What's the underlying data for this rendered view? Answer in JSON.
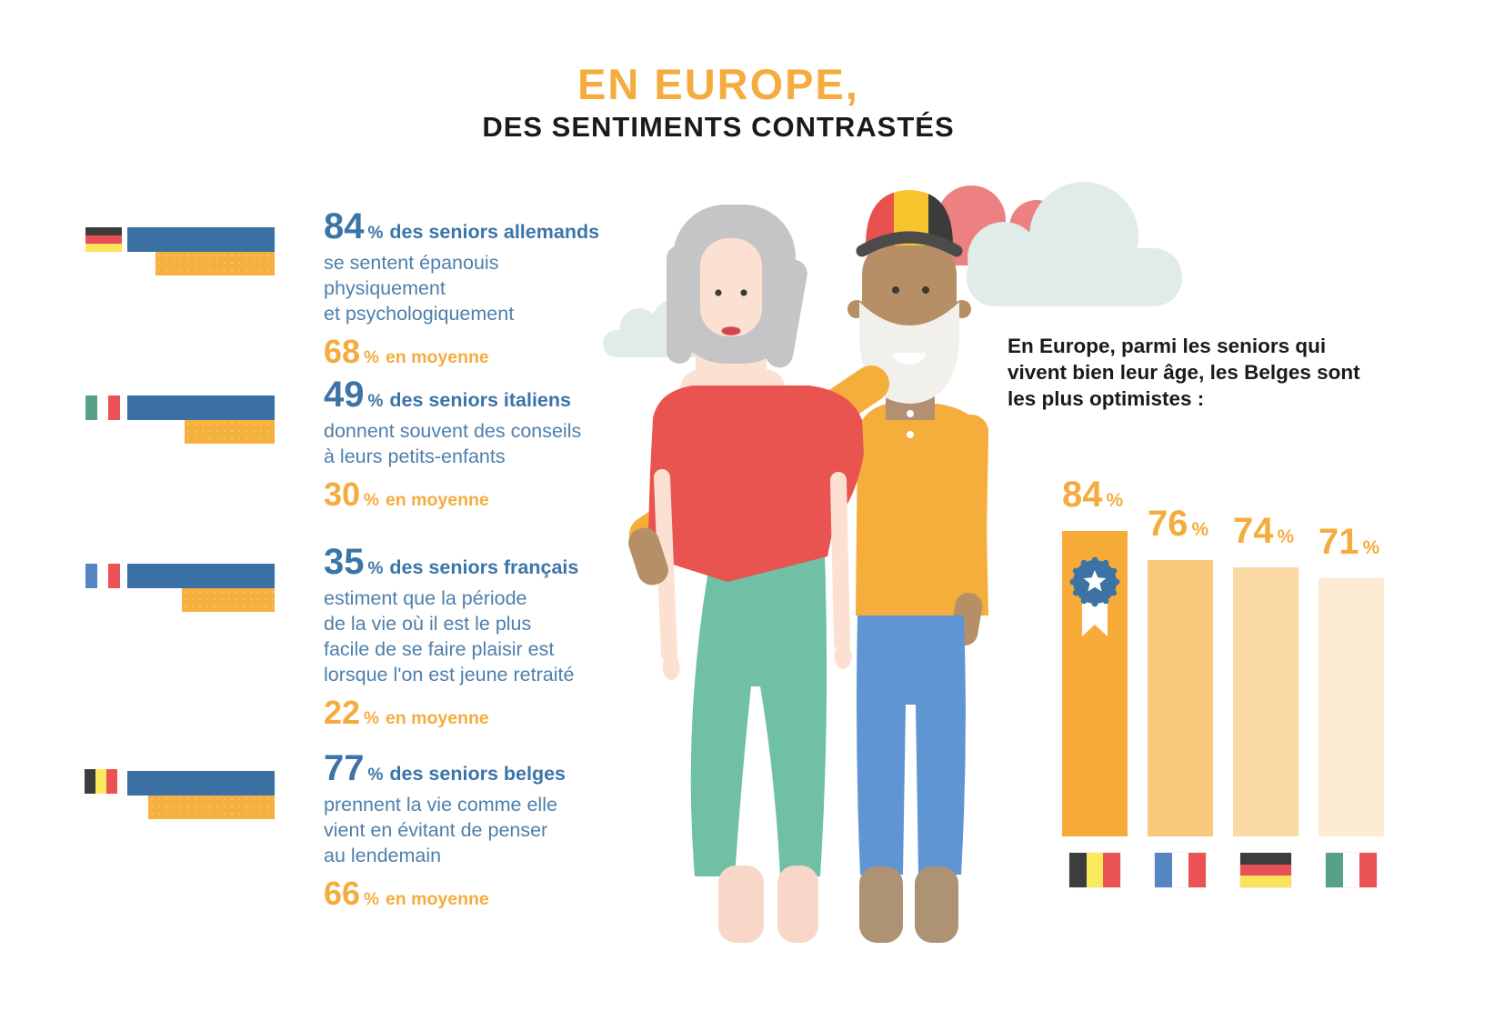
{
  "title": {
    "line1": "EN EUROPE,",
    "line2": "DES SENTIMENTS CONTRASTÉS"
  },
  "colors": {
    "accent_orange": "#F5AC3F",
    "headline_blue": "#3D74A8",
    "body_blue": "#4D7FAC",
    "bar_blue": "#3A70A3",
    "bar_orange": "#F5B13D",
    "text_black": "#1A1A18"
  },
  "flags": {
    "germany_small": {
      "orientation": "horizontal",
      "colors": [
        "#3D3D3D",
        "#E94F56",
        "#FBE35B"
      ]
    },
    "italy_small": {
      "orientation": "vertical",
      "colors": [
        "#57A287",
        "#FFFFFF",
        "#EA5254"
      ]
    },
    "france_small": {
      "orientation": "vertical",
      "colors": [
        "#5585C2",
        "#FFFFFF",
        "#EA5254"
      ]
    },
    "belgium_small": {
      "orientation": "vertical",
      "colors": [
        "#3D3D3D",
        "#FBE95E",
        "#EA5254"
      ]
    },
    "belgium": {
      "orientation": "vertical",
      "colors": [
        "#3D3D3D",
        "#FBE95E",
        "#EA5254"
      ]
    },
    "france": {
      "orientation": "vertical",
      "colors": [
        "#5585C2",
        "#FFFFFF",
        "#EA5254"
      ]
    },
    "germany": {
      "orientation": "horizontal",
      "colors": [
        "#3D3D3D",
        "#E94F56",
        "#FBE35B"
      ]
    },
    "italy": {
      "orientation": "vertical",
      "colors": [
        "#57A287",
        "#FFFFFF",
        "#EA5254"
      ]
    }
  },
  "stats": [
    {
      "flag": "germany_small",
      "value": "84",
      "pct": "%",
      "headline": "des seniors allemands",
      "description": [
        "se sentent épanouis physiquement",
        "et psychologiquement"
      ],
      "average": "68",
      "average_label": "en moyenne"
    },
    {
      "flag": "italy_small",
      "value": "49",
      "pct": "%",
      "headline": "des seniors italiens",
      "description": [
        "donnent souvent des conseils",
        "à leurs petits-enfants"
      ],
      "average": "30",
      "average_label": "en moyenne"
    },
    {
      "flag": "france_small",
      "value": "35",
      "pct": "%",
      "headline": "des seniors français",
      "description": [
        "estiment que la période",
        "de la vie où il est le plus",
        "facile de se faire plaisir est",
        "lorsque l'on est jeune retraité"
      ],
      "average": "22",
      "average_label": "en moyenne"
    },
    {
      "flag": "belgium_small",
      "value": "77",
      "pct": "%",
      "headline": "des seniors belges",
      "description": [
        "prennent la vie comme elle",
        "vient en évitant de penser",
        "au lendemain"
      ],
      "average": "66",
      "average_label": "en moyenne"
    }
  ],
  "right_panel": {
    "intro": [
      "En Europe, parmi les seniors qui",
      "vivent bien leur âge, les Belges sont",
      "les plus optimistes :"
    ],
    "bars": [
      {
        "value": "84",
        "pct": "%",
        "flag": "belgium",
        "highlight": true
      },
      {
        "value": "76",
        "pct": "%",
        "flag": "france",
        "highlight": false
      },
      {
        "value": "74",
        "pct": "%",
        "flag": "germany",
        "highlight": false
      },
      {
        "value": "71",
        "pct": "%",
        "flag": "italy",
        "highlight": false
      }
    ],
    "bar_colors": [
      "#F7AB38",
      "#F9C97C",
      "#FBD9A5",
      "#FDECD3"
    ]
  },
  "chart_data": [
    {
      "type": "bar",
      "orientation": "horizontal",
      "title": "Sentiments des seniors par pays vs moyenne européenne",
      "categories": [
        "Allemagne",
        "Italie",
        "France",
        "Belgique"
      ],
      "series": [
        {
          "name": "pays",
          "values": [
            84,
            49,
            35,
            77
          ],
          "color": "#3A70A3"
        },
        {
          "name": "moyenne européenne",
          "values": [
            68,
            30,
            22,
            66
          ],
          "color": "#F5B13D"
        }
      ],
      "unit": "%",
      "annotations": [
        "84 % des seniors allemands se sentent épanouis physiquement et psychologiquement (68 % en moyenne)",
        "49 % des seniors italiens donnent souvent des conseils à leurs petits-enfants (30 % en moyenne)",
        "35 % des seniors français estiment que la période de la vie où il est le plus facile de se faire plaisir est lorsque l'on est jeune retraité (22 % en moyenne)",
        "77 % des seniors belges prennent la vie comme elle vient en évitant de penser au lendemain (66 % en moyenne)"
      ]
    },
    {
      "type": "bar",
      "orientation": "vertical",
      "title": "En Europe, parmi les seniors qui vivent bien leur âge, les Belges sont les plus optimistes :",
      "categories": [
        "Belgique",
        "France",
        "Allemagne",
        "Italie"
      ],
      "values": [
        84,
        76,
        74,
        71
      ],
      "unit": "%",
      "ylim": [
        0,
        100
      ],
      "grid": false,
      "data_labels": [
        "84 %",
        "76 %",
        "74 %",
        "71 %"
      ],
      "highlight_index": 0
    }
  ]
}
